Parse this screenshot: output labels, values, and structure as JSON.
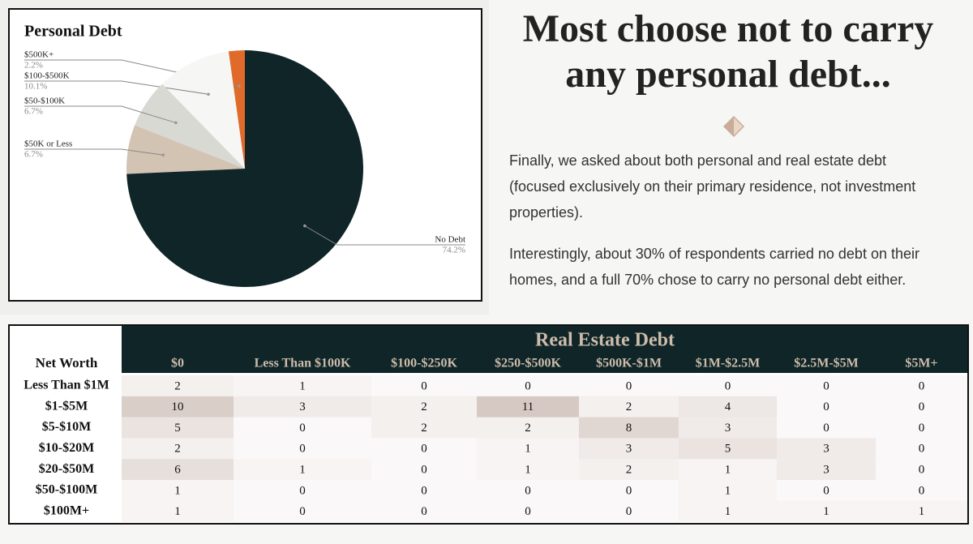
{
  "chart_data": {
    "type": "pie",
    "title": "Personal Debt",
    "categories": [
      "$500K+",
      "$100-$500K",
      "$50-$100K",
      "$50K or Less",
      "No Debt"
    ],
    "values": [
      2.2,
      10.1,
      6.7,
      6.7,
      74.2
    ],
    "value_labels": [
      "2.2%",
      "10.1%",
      "6.7%",
      "6.7%",
      "74.2%"
    ],
    "colors": [
      "#e06a2a",
      "#f6f6f5",
      "#d9d9d3",
      "#d3c3b2",
      "#0f2528"
    ]
  },
  "heading": "Most choose not to carry any personal debt...",
  "paragraphs": [
    "Finally, we asked about both personal and real estate debt (focused exclusively on their primary residence, not investment properties).",
    "Interestingly, about 30% of respondents carried no debt on their homes, and a full 70% chose to carry no personal debt either."
  ],
  "table": {
    "title": "Real Estate Debt",
    "row_header": "Net Worth",
    "columns": [
      "$0",
      "Less Than $100K",
      "$100-$250K",
      "$250-$500K",
      "$500K-$1M",
      "$1M-$2.5M",
      "$2.5M-$5M",
      "$5M+"
    ],
    "rows": [
      {
        "label": "Less Than $1M",
        "values": [
          2,
          1,
          0,
          0,
          0,
          0,
          0,
          0
        ]
      },
      {
        "label": "$1-$5M",
        "values": [
          10,
          3,
          2,
          11,
          2,
          4,
          0,
          0
        ]
      },
      {
        "label": "$5-$10M",
        "values": [
          5,
          0,
          2,
          2,
          8,
          3,
          0,
          0
        ]
      },
      {
        "label": "$10-$20M",
        "values": [
          2,
          0,
          0,
          1,
          3,
          5,
          3,
          0
        ]
      },
      {
        "label": "$20-$50M",
        "values": [
          6,
          1,
          0,
          1,
          2,
          1,
          3,
          0
        ]
      },
      {
        "label": "$50-$100M",
        "values": [
          1,
          0,
          0,
          0,
          0,
          1,
          0,
          0
        ]
      },
      {
        "label": "$100M+",
        "values": [
          1,
          0,
          0,
          0,
          0,
          1,
          1,
          1
        ]
      }
    ]
  }
}
